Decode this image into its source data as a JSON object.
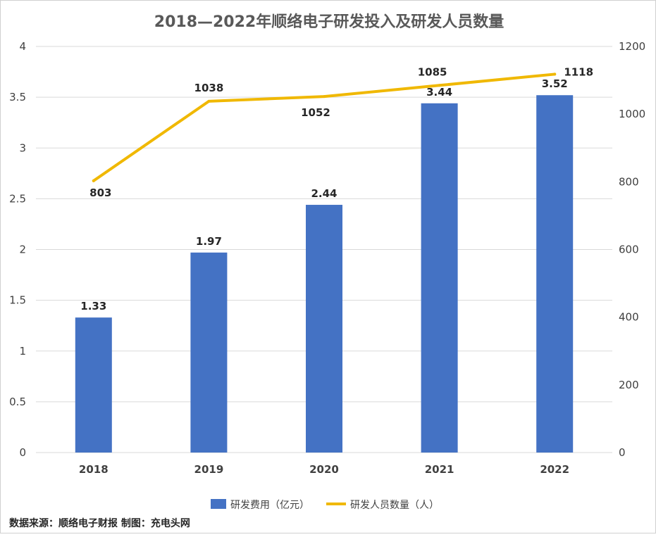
{
  "chart_data": {
    "type": "bar+line",
    "title": "2018—2022年顺络电子研发投入及研发人员数量",
    "categories": [
      "2018",
      "2019",
      "2020",
      "2021",
      "2022"
    ],
    "series": [
      {
        "name": "研发费用（亿元）",
        "type": "bar",
        "axis": "left",
        "color": "#4472C4",
        "values": [
          1.33,
          1.97,
          2.44,
          3.44,
          3.52
        ],
        "labels": [
          "1.33",
          "1.97",
          "2.44",
          "3.44",
          "3.52"
        ]
      },
      {
        "name": "研发人员数量（人）",
        "type": "line",
        "axis": "right",
        "color": "#F0B800",
        "values": [
          803,
          1038,
          1052,
          1085,
          1118
        ],
        "labels": [
          "803",
          "1038",
          "1052",
          "1085",
          "1118"
        ]
      }
    ],
    "left_axis": {
      "ylim": [
        0,
        4
      ],
      "ticks": [
        "0",
        "0.5",
        "1",
        "1.5",
        "2",
        "2.5",
        "3",
        "3.5",
        "4"
      ]
    },
    "right_axis": {
      "ylim": [
        0,
        1200
      ],
      "ticks": [
        "0",
        "200",
        "400",
        "600",
        "800",
        "1000",
        "1200"
      ]
    },
    "grid": true,
    "legend": "bottom"
  },
  "source_note": "数据来源：顺络电子财报  制图：充电头网"
}
